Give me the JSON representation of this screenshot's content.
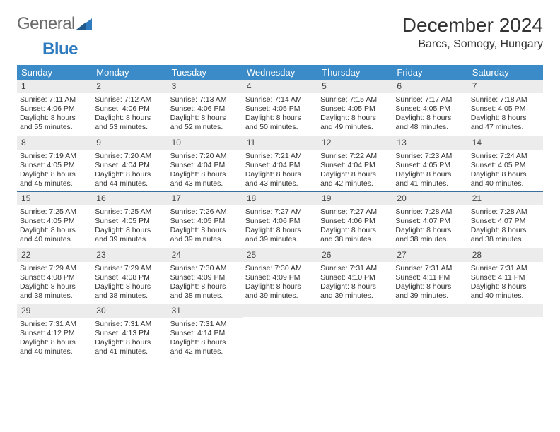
{
  "brand": {
    "word1": "General",
    "word2": "Blue"
  },
  "title": "December 2024",
  "location": "Barcs, Somogy, Hungary",
  "colors": {
    "header_bg": "#3b8bc8",
    "header_text": "#ffffff",
    "row_separator": "#3b6f9e",
    "daynum_bg": "#ececec",
    "logo_gray": "#6a6a6a",
    "logo_blue": "#2f7bbf"
  },
  "weekday_labels": [
    "Sunday",
    "Monday",
    "Tuesday",
    "Wednesday",
    "Thursday",
    "Friday",
    "Saturday"
  ],
  "weeks": [
    [
      {
        "n": "1",
        "sr": "7:11 AM",
        "ss": "4:06 PM",
        "dh": "8",
        "dm": "55"
      },
      {
        "n": "2",
        "sr": "7:12 AM",
        "ss": "4:06 PM",
        "dh": "8",
        "dm": "53"
      },
      {
        "n": "3",
        "sr": "7:13 AM",
        "ss": "4:06 PM",
        "dh": "8",
        "dm": "52"
      },
      {
        "n": "4",
        "sr": "7:14 AM",
        "ss": "4:05 PM",
        "dh": "8",
        "dm": "50"
      },
      {
        "n": "5",
        "sr": "7:15 AM",
        "ss": "4:05 PM",
        "dh": "8",
        "dm": "49"
      },
      {
        "n": "6",
        "sr": "7:17 AM",
        "ss": "4:05 PM",
        "dh": "8",
        "dm": "48"
      },
      {
        "n": "7",
        "sr": "7:18 AM",
        "ss": "4:05 PM",
        "dh": "8",
        "dm": "47"
      }
    ],
    [
      {
        "n": "8",
        "sr": "7:19 AM",
        "ss": "4:05 PM",
        "dh": "8",
        "dm": "45"
      },
      {
        "n": "9",
        "sr": "7:20 AM",
        "ss": "4:04 PM",
        "dh": "8",
        "dm": "44"
      },
      {
        "n": "10",
        "sr": "7:20 AM",
        "ss": "4:04 PM",
        "dh": "8",
        "dm": "43"
      },
      {
        "n": "11",
        "sr": "7:21 AM",
        "ss": "4:04 PM",
        "dh": "8",
        "dm": "43"
      },
      {
        "n": "12",
        "sr": "7:22 AM",
        "ss": "4:04 PM",
        "dh": "8",
        "dm": "42"
      },
      {
        "n": "13",
        "sr": "7:23 AM",
        "ss": "4:05 PM",
        "dh": "8",
        "dm": "41"
      },
      {
        "n": "14",
        "sr": "7:24 AM",
        "ss": "4:05 PM",
        "dh": "8",
        "dm": "40"
      }
    ],
    [
      {
        "n": "15",
        "sr": "7:25 AM",
        "ss": "4:05 PM",
        "dh": "8",
        "dm": "40"
      },
      {
        "n": "16",
        "sr": "7:25 AM",
        "ss": "4:05 PM",
        "dh": "8",
        "dm": "39"
      },
      {
        "n": "17",
        "sr": "7:26 AM",
        "ss": "4:05 PM",
        "dh": "8",
        "dm": "39"
      },
      {
        "n": "18",
        "sr": "7:27 AM",
        "ss": "4:06 PM",
        "dh": "8",
        "dm": "39"
      },
      {
        "n": "19",
        "sr": "7:27 AM",
        "ss": "4:06 PM",
        "dh": "8",
        "dm": "38"
      },
      {
        "n": "20",
        "sr": "7:28 AM",
        "ss": "4:07 PM",
        "dh": "8",
        "dm": "38"
      },
      {
        "n": "21",
        "sr": "7:28 AM",
        "ss": "4:07 PM",
        "dh": "8",
        "dm": "38"
      }
    ],
    [
      {
        "n": "22",
        "sr": "7:29 AM",
        "ss": "4:08 PM",
        "dh": "8",
        "dm": "38"
      },
      {
        "n": "23",
        "sr": "7:29 AM",
        "ss": "4:08 PM",
        "dh": "8",
        "dm": "38"
      },
      {
        "n": "24",
        "sr": "7:30 AM",
        "ss": "4:09 PM",
        "dh": "8",
        "dm": "38"
      },
      {
        "n": "25",
        "sr": "7:30 AM",
        "ss": "4:09 PM",
        "dh": "8",
        "dm": "39"
      },
      {
        "n": "26",
        "sr": "7:31 AM",
        "ss": "4:10 PM",
        "dh": "8",
        "dm": "39"
      },
      {
        "n": "27",
        "sr": "7:31 AM",
        "ss": "4:11 PM",
        "dh": "8",
        "dm": "39"
      },
      {
        "n": "28",
        "sr": "7:31 AM",
        "ss": "4:11 PM",
        "dh": "8",
        "dm": "40"
      }
    ],
    [
      {
        "n": "29",
        "sr": "7:31 AM",
        "ss": "4:12 PM",
        "dh": "8",
        "dm": "40"
      },
      {
        "n": "30",
        "sr": "7:31 AM",
        "ss": "4:13 PM",
        "dh": "8",
        "dm": "41"
      },
      {
        "n": "31",
        "sr": "7:31 AM",
        "ss": "4:14 PM",
        "dh": "8",
        "dm": "42"
      },
      null,
      null,
      null,
      null
    ]
  ],
  "labels": {
    "sunrise_prefix": "Sunrise: ",
    "sunset_prefix": "Sunset: ",
    "daylight_prefix": "Daylight: ",
    "hours_word": " hours",
    "and_word": "and ",
    "minutes_word": " minutes."
  }
}
